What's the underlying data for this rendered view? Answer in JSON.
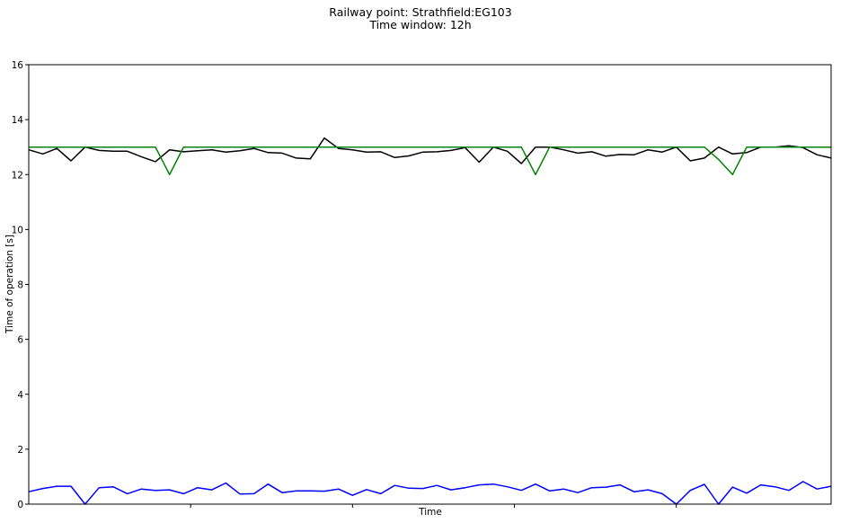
{
  "chart_data": {
    "type": "line",
    "title": "Railway point: Strathfield:EG103",
    "subtitle": "Time window: 12h",
    "xlabel": "Time",
    "ylabel": "Time of operation [s]",
    "ylim": [
      0,
      16
    ],
    "yticks": [
      "0",
      "2",
      "4",
      "6",
      "8",
      "10",
      "12",
      "14",
      "16"
    ],
    "xlim": [
      0,
      57
    ],
    "xticks_positions": [
      11.5,
      23,
      34.5,
      46
    ],
    "grid": false,
    "x": [
      0,
      1,
      2,
      3,
      4,
      5,
      6,
      7,
      8,
      9,
      10,
      11,
      12,
      13,
      14,
      15,
      16,
      17,
      18,
      19,
      20,
      21,
      22,
      23,
      24,
      25,
      26,
      27,
      28,
      29,
      30,
      31,
      32,
      33,
      34,
      35,
      36,
      37,
      38,
      39,
      40,
      41,
      42,
      43,
      44,
      45,
      46,
      47,
      48,
      49,
      50,
      51,
      52,
      53,
      54,
      55,
      56,
      57
    ],
    "series": [
      {
        "color": "#000000",
        "values": [
          12.9,
          12.75,
          12.95,
          12.5,
          13.0,
          12.88,
          12.85,
          12.85,
          12.65,
          12.47,
          12.9,
          12.83,
          12.87,
          12.9,
          12.82,
          12.87,
          12.95,
          12.8,
          12.78,
          12.6,
          12.57,
          13.33,
          12.95,
          12.9,
          12.82,
          12.83,
          12.62,
          12.68,
          12.82,
          12.83,
          12.88,
          12.98,
          12.45,
          13.0,
          12.85,
          12.4,
          13.0,
          13.0,
          12.9,
          12.78,
          12.83,
          12.67,
          12.73,
          12.72,
          12.9,
          12.82,
          13.0,
          12.5,
          12.6,
          13.0,
          12.75,
          12.8,
          13.0,
          13.0,
          13.05,
          12.98,
          12.72,
          12.6
        ]
      },
      {
        "color": "#008000",
        "values": [
          13,
          13,
          13,
          13,
          13,
          13,
          13,
          13,
          13,
          13,
          12,
          13,
          13,
          13,
          13,
          13,
          13,
          13,
          13,
          13,
          13,
          13,
          13,
          13,
          13,
          13,
          13,
          13,
          13,
          13,
          13,
          13,
          13,
          13,
          13,
          13,
          12,
          13,
          13,
          13,
          13,
          13,
          13,
          13,
          13,
          13,
          13,
          13,
          13,
          12.55,
          12,
          13,
          13,
          13,
          13,
          13,
          13,
          13
        ]
      },
      {
        "color": "#0000ff",
        "values": [
          0.45,
          0.57,
          0.65,
          0.65,
          0.0,
          0.6,
          0.63,
          0.38,
          0.55,
          0.5,
          0.52,
          0.38,
          0.6,
          0.52,
          0.77,
          0.37,
          0.38,
          0.73,
          0.42,
          0.48,
          0.48,
          0.47,
          0.55,
          0.32,
          0.53,
          0.38,
          0.68,
          0.58,
          0.57,
          0.68,
          0.52,
          0.6,
          0.7,
          0.73,
          0.63,
          0.5,
          0.73,
          0.48,
          0.55,
          0.42,
          0.6,
          0.62,
          0.7,
          0.45,
          0.52,
          0.38,
          0.0,
          0.5,
          0.72,
          0.0,
          0.62,
          0.4,
          0.7,
          0.63,
          0.5,
          0.82,
          0.55,
          0.65
        ]
      }
    ]
  }
}
